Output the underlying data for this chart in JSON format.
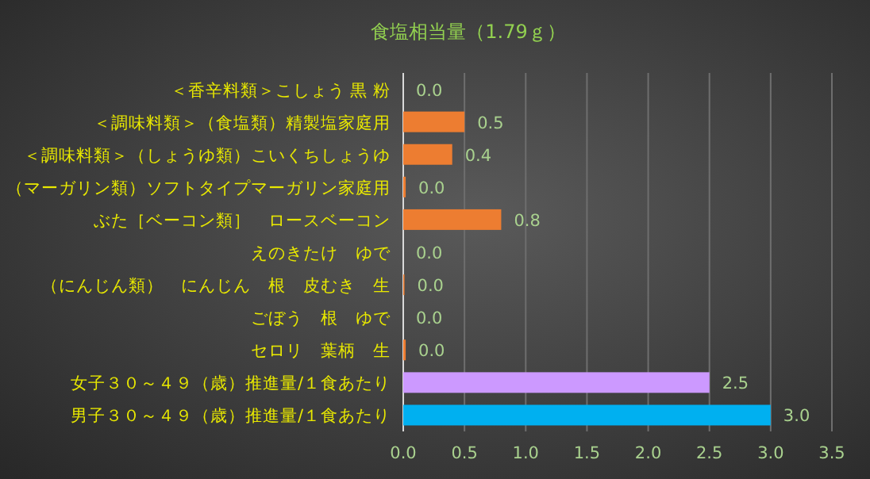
{
  "chart_data": {
    "type": "bar",
    "orientation": "horizontal",
    "title": "食塩相当量（1.79ｇ）",
    "categories": [
      "＜香辛料類＞こしょう 黒 粉",
      "＜調味料類＞（食塩類）精製塩家庭用",
      "＜調味料類＞（しょうゆ類）こいくちしょうゆ",
      "（マーガリン類）ソフトタイプマーガリン家庭用",
      "ぶた［ベーコン類］　ロースベーコン",
      "えのきたけ　ゆで",
      "（にんじん類）　にんじん　根　皮むき　生",
      "ごぼう　根　ゆで",
      "セロリ　葉柄　生",
      "女子３０～４９（歳）推進量/１食あたり",
      "男子３０～４９（歳）推進量/１食あたり"
    ],
    "values": [
      0,
      0.5,
      0.4,
      0.02,
      0.8,
      0,
      0.01,
      0,
      0.02,
      2.5,
      3.0
    ],
    "colors": [
      "#ed7d31",
      "#ed7d31",
      "#ed7d31",
      "#ed7d31",
      "#ed7d31",
      "#ed7d31",
      "#ed7d31",
      "#ed7d31",
      "#ed7d31",
      "#cc99ff",
      "#00b0f0"
    ],
    "value_labels": [
      "0.0",
      "0.5",
      "0.4",
      "0.0",
      "0.8",
      "0.0",
      "0.0",
      "0.0",
      "0.0",
      "2.5",
      "3.0"
    ],
    "xlim": [
      0,
      3.5
    ],
    "xticks": [
      {
        "value": 0,
        "label": "0.0"
      },
      {
        "value": 0.5,
        "label": "0.5"
      },
      {
        "value": 1,
        "label": "1.0"
      },
      {
        "value": 1.5,
        "label": "1.5"
      },
      {
        "value": 2,
        "label": "2.0"
      },
      {
        "value": 2.5,
        "label": "2.5"
      },
      {
        "value": 3,
        "label": "3.0"
      },
      {
        "value": 3.5,
        "label": "3.5"
      }
    ],
    "grid": "x"
  }
}
